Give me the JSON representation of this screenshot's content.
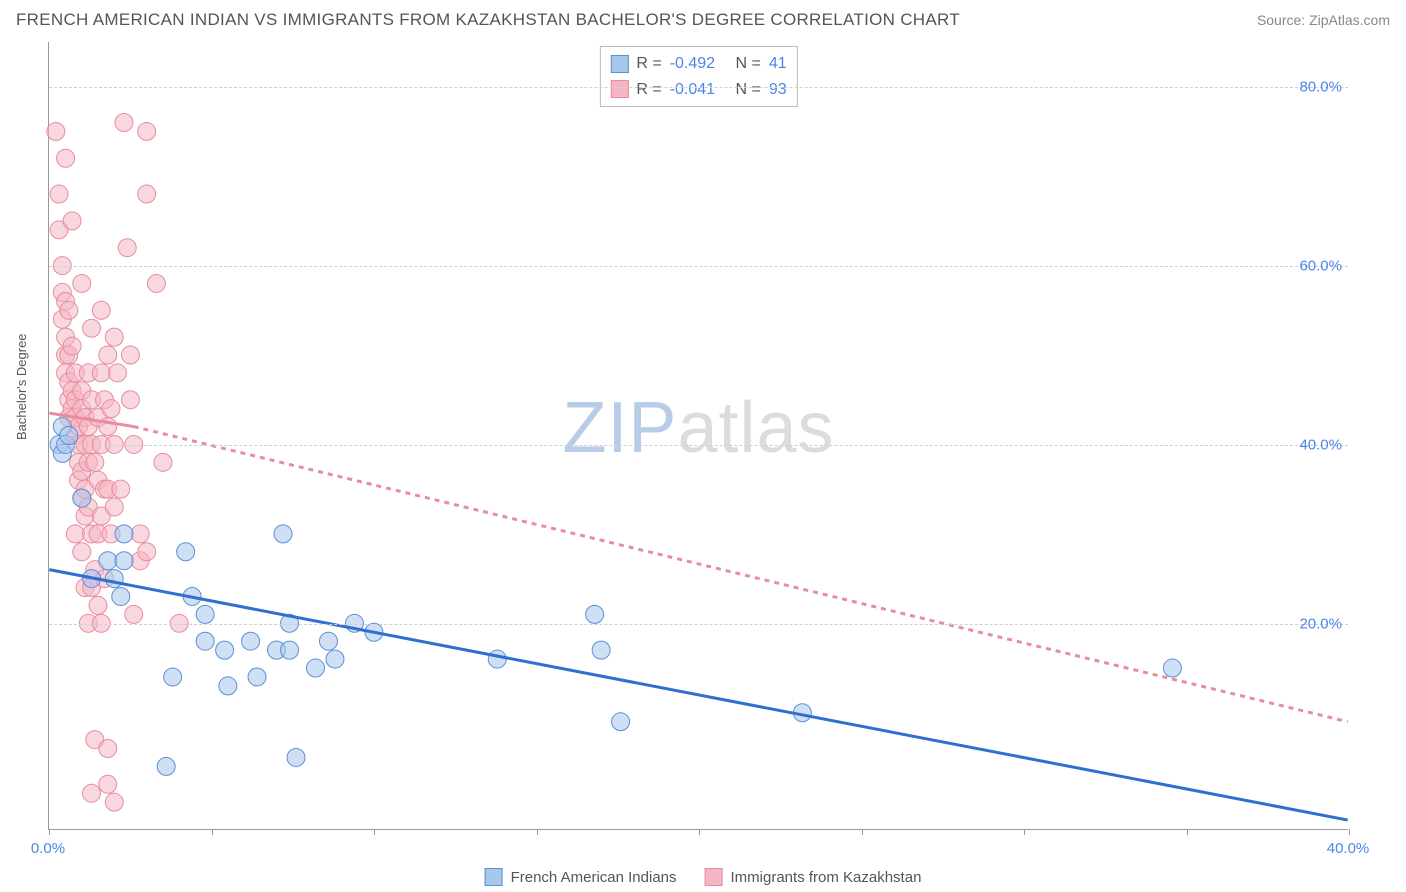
{
  "header": {
    "title": "FRENCH AMERICAN INDIAN VS IMMIGRANTS FROM KAZAKHSTAN BACHELOR'S DEGREE CORRELATION CHART",
    "source": "Source: ZipAtlas.com"
  },
  "chart": {
    "type": "scatter",
    "ylabel": "Bachelor's Degree",
    "watermark_zip": "ZIP",
    "watermark_atlas": "atlas",
    "background_color": "#ffffff",
    "grid_color": "#d0d0d0",
    "axis_color": "#999999",
    "label_color": "#4a86e8",
    "xlim": [
      0,
      40
    ],
    "ylim": [
      -3,
      85
    ],
    "x_ticks": [
      0,
      5,
      10,
      15,
      20,
      25,
      30,
      35,
      40
    ],
    "x_tick_labels": [
      "0.0%",
      "",
      "",
      "",
      "",
      "",
      "",
      "",
      "40.0%"
    ],
    "y_gridlines": [
      20,
      40,
      60,
      80
    ],
    "y_tick_labels": [
      "20.0%",
      "40.0%",
      "60.0%",
      "80.0%"
    ],
    "point_radius": 9,
    "point_opacity": 0.55,
    "series": [
      {
        "name": "French American Indians",
        "color_fill": "#a7c7ed",
        "color_stroke": "#5b8fd6",
        "line_color": "#2f6fd0",
        "line_width": 3,
        "line_dash": "none",
        "R": "-0.492",
        "N": "41",
        "trend": {
          "x1": 0,
          "y1": 26,
          "x2": 40,
          "y2": -2
        },
        "points": [
          [
            0.3,
            40
          ],
          [
            0.4,
            39
          ],
          [
            0.4,
            42
          ],
          [
            0.5,
            40
          ],
          [
            0.6,
            41
          ],
          [
            1.0,
            34
          ],
          [
            1.3,
            25
          ],
          [
            1.8,
            27
          ],
          [
            2.0,
            25
          ],
          [
            2.2,
            23
          ],
          [
            2.3,
            30
          ],
          [
            2.3,
            27
          ],
          [
            3.6,
            4
          ],
          [
            3.8,
            14
          ],
          [
            4.2,
            28
          ],
          [
            4.4,
            23
          ],
          [
            4.8,
            18
          ],
          [
            4.8,
            21
          ],
          [
            5.4,
            17
          ],
          [
            5.5,
            13
          ],
          [
            6.2,
            18
          ],
          [
            6.4,
            14
          ],
          [
            7.0,
            17
          ],
          [
            7.2,
            30
          ],
          [
            7.4,
            17
          ],
          [
            7.4,
            20
          ],
          [
            7.6,
            5
          ],
          [
            8.2,
            15
          ],
          [
            8.6,
            18
          ],
          [
            8.8,
            16
          ],
          [
            9.4,
            20
          ],
          [
            10.0,
            19
          ],
          [
            13.8,
            16
          ],
          [
            16.8,
            21
          ],
          [
            17.0,
            17
          ],
          [
            17.6,
            9
          ],
          [
            23.2,
            10
          ],
          [
            34.6,
            15
          ]
        ]
      },
      {
        "name": "Immigrants from Kazakhstan",
        "color_fill": "#f4b6c2",
        "color_stroke": "#e88ca0",
        "line_color": "#e88ca0",
        "line_width": 3,
        "line_dash": "5,5",
        "R": "-0.041",
        "N": "93",
        "trend_solid": {
          "x1": 0,
          "y1": 43.5,
          "x2": 2.6,
          "y2": 42
        },
        "trend": {
          "x1": 2.6,
          "y1": 42,
          "x2": 40,
          "y2": 9
        },
        "points": [
          [
            0.2,
            75
          ],
          [
            0.3,
            68
          ],
          [
            0.3,
            64
          ],
          [
            0.4,
            60
          ],
          [
            0.4,
            57
          ],
          [
            0.4,
            54
          ],
          [
            0.5,
            56
          ],
          [
            0.5,
            52
          ],
          [
            0.5,
            50
          ],
          [
            0.5,
            48
          ],
          [
            0.6,
            55
          ],
          [
            0.6,
            50
          ],
          [
            0.6,
            47
          ],
          [
            0.6,
            45
          ],
          [
            0.6,
            43
          ],
          [
            0.7,
            46
          ],
          [
            0.7,
            51
          ],
          [
            0.7,
            44
          ],
          [
            0.8,
            48
          ],
          [
            0.8,
            45
          ],
          [
            0.8,
            43
          ],
          [
            0.8,
            41
          ],
          [
            0.8,
            30
          ],
          [
            0.9,
            42
          ],
          [
            0.9,
            40
          ],
          [
            0.9,
            38
          ],
          [
            0.9,
            36
          ],
          [
            1.0,
            46
          ],
          [
            1.0,
            44
          ],
          [
            1.0,
            37
          ],
          [
            1.0,
            34
          ],
          [
            1.0,
            28
          ],
          [
            1.1,
            43
          ],
          [
            1.1,
            40
          ],
          [
            1.1,
            35
          ],
          [
            1.1,
            32
          ],
          [
            1.1,
            24
          ],
          [
            1.2,
            48
          ],
          [
            1.2,
            42
          ],
          [
            1.2,
            38
          ],
          [
            1.2,
            33
          ],
          [
            1.2,
            20
          ],
          [
            1.3,
            45
          ],
          [
            1.3,
            40
          ],
          [
            1.3,
            30
          ],
          [
            1.3,
            24
          ],
          [
            1.4,
            38
          ],
          [
            1.4,
            26
          ],
          [
            1.4,
            7
          ],
          [
            1.5,
            43
          ],
          [
            1.5,
            36
          ],
          [
            1.5,
            30
          ],
          [
            1.5,
            22
          ],
          [
            1.6,
            48
          ],
          [
            1.6,
            40
          ],
          [
            1.6,
            32
          ],
          [
            1.6,
            20
          ],
          [
            1.7,
            45
          ],
          [
            1.7,
            35
          ],
          [
            1.7,
            25
          ],
          [
            1.8,
            6
          ],
          [
            1.8,
            50
          ],
          [
            1.8,
            42
          ],
          [
            1.8,
            35
          ],
          [
            1.8,
            2
          ],
          [
            1.9,
            44
          ],
          [
            1.9,
            30
          ],
          [
            2.0,
            52
          ],
          [
            2.0,
            40
          ],
          [
            2.0,
            33
          ],
          [
            2.0,
            0
          ],
          [
            2.1,
            48
          ],
          [
            2.2,
            35
          ],
          [
            2.3,
            76
          ],
          [
            2.4,
            62
          ],
          [
            2.5,
            50
          ],
          [
            2.5,
            45
          ],
          [
            2.6,
            40
          ],
          [
            2.6,
            21
          ],
          [
            2.8,
            30
          ],
          [
            2.8,
            27
          ],
          [
            3.0,
            75
          ],
          [
            3.0,
            28
          ],
          [
            3.0,
            68
          ],
          [
            3.3,
            58
          ],
          [
            3.5,
            38
          ],
          [
            4.0,
            20
          ],
          [
            0.5,
            72
          ],
          [
            0.7,
            65
          ],
          [
            1.0,
            58
          ],
          [
            1.3,
            53
          ],
          [
            1.6,
            55
          ],
          [
            1.3,
            1
          ]
        ]
      }
    ]
  },
  "legend_top": {
    "R_label": "R =",
    "N_label": "N ="
  },
  "legend_bottom": {
    "items": [
      "French American Indians",
      "Immigrants from Kazakhstan"
    ]
  }
}
